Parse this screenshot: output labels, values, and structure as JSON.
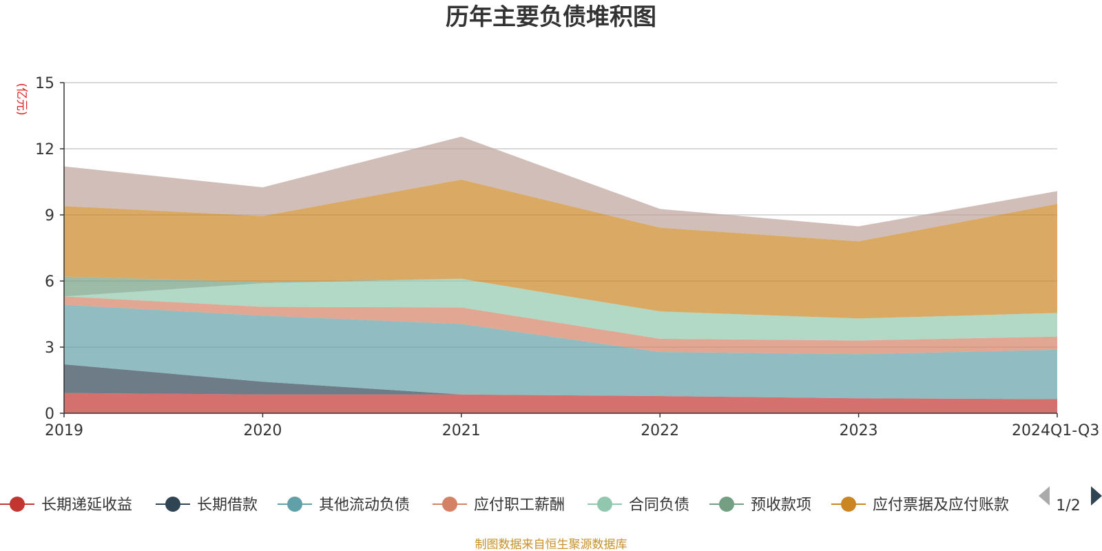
{
  "chart_data": {
    "type": "area",
    "stacked": true,
    "title": "历年主要负债堆积图",
    "unit_label": "(亿元)",
    "categories": [
      "2019",
      "2020",
      "2021",
      "2022",
      "2023",
      "2024Q1-Q3"
    ],
    "ylim": [
      0,
      15
    ],
    "yticks": [
      0,
      3,
      6,
      9,
      12,
      15
    ],
    "grid": true,
    "legend_position": "bottom",
    "series": [
      {
        "name": "长期递延收益",
        "color": "#c23531",
        "values": [
          0.92,
          0.85,
          0.85,
          0.78,
          0.68,
          0.64
        ]
      },
      {
        "name": "长期借款",
        "color": "#2f4554",
        "values": [
          1.3,
          0.58,
          0.0,
          0.0,
          0.0,
          0.0
        ]
      },
      {
        "name": "其他流动负债",
        "color": "#61a0a8",
        "values": [
          2.7,
          3.0,
          3.2,
          2.0,
          2.0,
          2.24
        ]
      },
      {
        "name": "应付职工薪酬",
        "color": "#d48265",
        "values": [
          0.38,
          0.4,
          0.75,
          0.6,
          0.62,
          0.6
        ]
      },
      {
        "name": "合同负债",
        "color": "#91c7ae",
        "values": [
          0.0,
          1.07,
          1.3,
          1.24,
          1.0,
          1.07
        ]
      },
      {
        "name": "预收款项",
        "color": "#749f83",
        "values": [
          0.9,
          0.05,
          0.0,
          0.0,
          0.0,
          0.0
        ]
      },
      {
        "name": "应付票据及应付账款",
        "color": "#ca8622",
        "values": [
          3.2,
          3.0,
          4.5,
          3.8,
          3.5,
          4.95
        ]
      },
      {
        "name": "",
        "color": "#bda29a",
        "values": [
          1.8,
          1.3,
          1.95,
          0.85,
          0.68,
          0.58
        ]
      }
    ],
    "legend_visible_count": 7,
    "legend_page": "1/2",
    "source_note": "制图数据来自恒生聚源数据库"
  }
}
